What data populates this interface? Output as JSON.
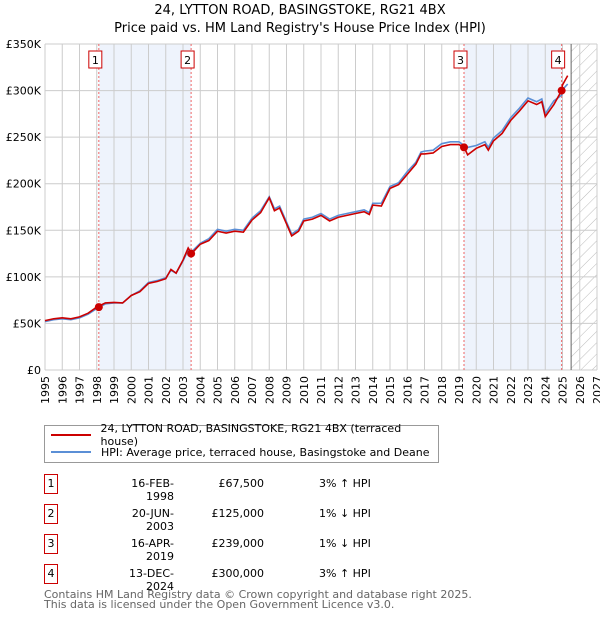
{
  "chart_data": {
    "type": "line",
    "title": "24, LYTTON ROAD, BASINGSTOKE, RG21 4BX",
    "subtitle": "Price paid vs. HM Land Registry's House Price Index (HPI)",
    "xlim": [
      1995,
      2027
    ],
    "ylim": [
      0,
      350000
    ],
    "yticks": [
      {
        "v": 0,
        "label": "£0"
      },
      {
        "v": 50000,
        "label": "£50K"
      },
      {
        "v": 100000,
        "label": "£100K"
      },
      {
        "v": 150000,
        "label": "£150K"
      },
      {
        "v": 200000,
        "label": "£200K"
      },
      {
        "v": 250000,
        "label": "£250K"
      },
      {
        "v": 300000,
        "label": "£300K"
      },
      {
        "v": 350000,
        "label": "£350K"
      }
    ],
    "xticks": [
      "1995",
      "1996",
      "1997",
      "1998",
      "1999",
      "2000",
      "2001",
      "2002",
      "2003",
      "2004",
      "2005",
      "2006",
      "2007",
      "2008",
      "2009",
      "2010",
      "2011",
      "2012",
      "2013",
      "2014",
      "2015",
      "2016",
      "2017",
      "2018",
      "2019",
      "2020",
      "2021",
      "2022",
      "2023",
      "2024",
      "2025",
      "2026",
      "2027"
    ],
    "forecast_start": 2025.5,
    "shaded": [
      [
        1998.12,
        2003.47
      ],
      [
        2019.29,
        2024.95
      ]
    ],
    "series": [
      {
        "name": "24, LYTTON ROAD, BASINGSTOKE, RG21 4BX (terraced house)",
        "color": "#cc0000",
        "x": [
          1995,
          1995.5,
          1996,
          1996.5,
          1997,
          1997.5,
          1998,
          1998.5,
          1999,
          1999.5,
          2000,
          2000.5,
          2001,
          2001.5,
          2002,
          2002.3,
          2002.6,
          2003,
          2003.3,
          2003.5,
          2004,
          2004.5,
          2005,
          2005.5,
          2006,
          2006.5,
          2007,
          2007.5,
          2008,
          2008.3,
          2008.6,
          2009,
          2009.3,
          2009.7,
          2010,
          2010.5,
          2011,
          2011.5,
          2012,
          2012.5,
          2013,
          2013.5,
          2013.8,
          2014,
          2014.5,
          2015,
          2015.5,
          2016,
          2016.5,
          2016.8,
          2017,
          2017.5,
          2018,
          2018.5,
          2019,
          2019.3,
          2019.5,
          2020,
          2020.5,
          2020.7,
          2021,
          2021.5,
          2022,
          2022.5,
          2023,
          2023.5,
          2023.8,
          2024,
          2024.5,
          2024.95,
          2025,
          2025.3
        ],
        "y": [
          53000,
          55000,
          56000,
          55000,
          57000,
          61000,
          67500,
          72000,
          72500,
          72000,
          80000,
          84000,
          93000,
          95000,
          98000,
          108000,
          104000,
          118000,
          131000,
          125000,
          135000,
          139000,
          149000,
          147000,
          149000,
          148000,
          161000,
          169000,
          185000,
          171000,
          174000,
          157000,
          144000,
          149000,
          160000,
          162000,
          166000,
          160000,
          164000,
          166000,
          168000,
          170000,
          167000,
          177000,
          176000,
          195000,
          199000,
          210000,
          221000,
          232000,
          232000,
          233000,
          240000,
          242000,
          242000,
          239000,
          231000,
          238000,
          242000,
          236000,
          246000,
          254000,
          268000,
          278000,
          289000,
          285000,
          288000,
          272000,
          285000,
          300000,
          306000,
          316000
        ]
      },
      {
        "name": "HPI: Average price, terraced house, Basingstoke and Deane",
        "color": "#5b8fd6",
        "x": [
          1995,
          1995.5,
          1996,
          1996.5,
          1997,
          1997.5,
          1998,
          1998.5,
          1999,
          1999.5,
          2000,
          2000.5,
          2001,
          2001.5,
          2002,
          2002.3,
          2002.6,
          2003,
          2003.3,
          2003.5,
          2004,
          2004.5,
          2005,
          2005.5,
          2006,
          2006.5,
          2007,
          2007.5,
          2008,
          2008.3,
          2008.6,
          2009,
          2009.3,
          2009.7,
          2010,
          2010.5,
          2011,
          2011.5,
          2012,
          2012.5,
          2013,
          2013.5,
          2013.8,
          2014,
          2014.5,
          2015,
          2015.5,
          2016,
          2016.5,
          2016.8,
          2017,
          2017.5,
          2018,
          2018.5,
          2019,
          2019.3,
          2019.5,
          2020,
          2020.5,
          2020.7,
          2021,
          2021.5,
          2022,
          2022.5,
          2023,
          2023.5,
          2023.8,
          2024,
          2024.5,
          2024.95,
          2025,
          2025.3
        ],
        "y": [
          52000,
          54000,
          55000,
          54000,
          56000,
          60000,
          66000,
          71000,
          72000,
          72000,
          80000,
          85000,
          94000,
          96000,
          99000,
          107000,
          104000,
          117000,
          129000,
          127000,
          136000,
          141000,
          151000,
          149000,
          151000,
          150000,
          163000,
          171000,
          186000,
          173000,
          176000,
          159000,
          146000,
          151000,
          162000,
          164000,
          168000,
          162000,
          166000,
          168000,
          170000,
          172000,
          169000,
          179000,
          179000,
          197000,
          201000,
          213000,
          223000,
          234000,
          235000,
          236000,
          243000,
          245000,
          245000,
          241000,
          239000,
          241000,
          245000,
          239000,
          249000,
          257000,
          271000,
          281000,
          292000,
          288000,
          291000,
          275000,
          289000,
          295000,
          301000,
          307000
        ]
      }
    ],
    "sales": [
      {
        "id": "1",
        "date": "16-FEB-1998",
        "x": 1998.12,
        "price": 67500,
        "price_label": "£67,500",
        "hpi": "3% ↑ HPI"
      },
      {
        "id": "2",
        "date": "20-JUN-2003",
        "x": 2003.47,
        "price": 125000,
        "price_label": "£125,000",
        "hpi": "1% ↓ HPI"
      },
      {
        "id": "3",
        "date": "16-APR-2019",
        "x": 2019.29,
        "price": 239000,
        "price_label": "£239,000",
        "hpi": "1% ↓ HPI"
      },
      {
        "id": "4",
        "date": "13-DEC-2024",
        "x": 2024.95,
        "price": 300000,
        "price_label": "£300,000",
        "hpi": "3% ↑ HPI"
      }
    ]
  },
  "footer": {
    "line1": "Contains HM Land Registry data © Crown copyright and database right 2025.",
    "line2": "This data is licensed under the Open Government Licence v3.0."
  }
}
